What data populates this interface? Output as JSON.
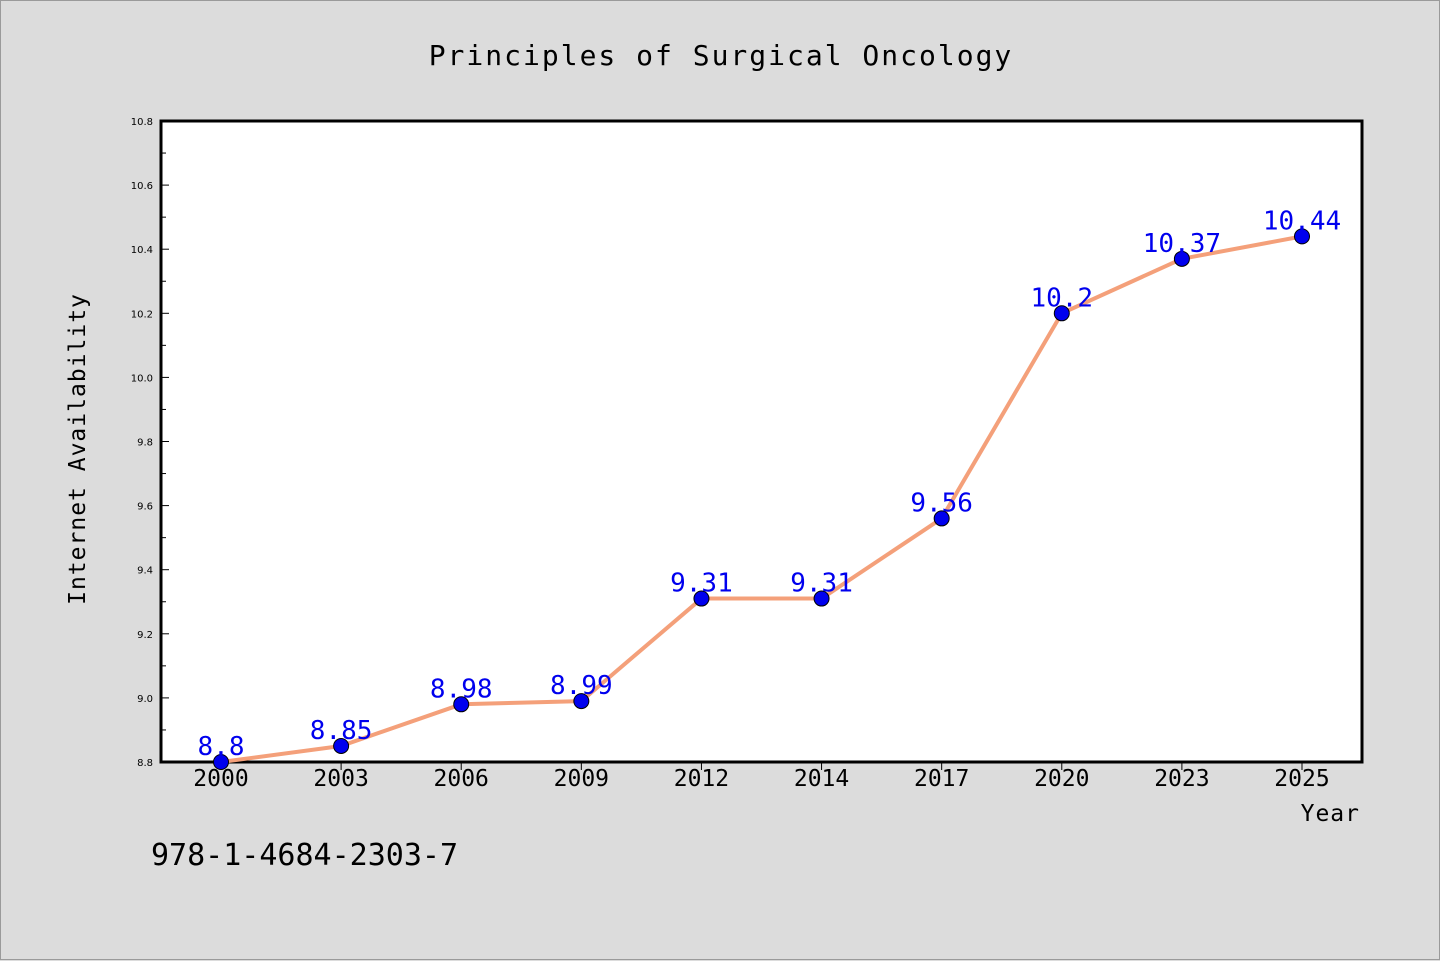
{
  "chart_data": {
    "type": "line",
    "title": "Principles of Surgical Oncology",
    "xlabel": "Year",
    "ylabel": "Internet Availability",
    "categories": [
      "2000",
      "2003",
      "2006",
      "2009",
      "2012",
      "2014",
      "2017",
      "2020",
      "2023",
      "2025"
    ],
    "series": [
      {
        "values": [
          8.8,
          8.85,
          8.98,
          8.99,
          9.31,
          9.31,
          9.56,
          10.2,
          10.37,
          10.44
        ],
        "data_labels": [
          "8.8",
          "8.85",
          "8.98",
          "8.99",
          "9.31",
          "9.31",
          "9.56",
          "10.2",
          "10.37",
          "10.44"
        ],
        "line_color": "#f4a07a",
        "marker_color": "#0000ee",
        "label_color": "#0000ee"
      }
    ],
    "ylim": [
      8.8,
      10.8
    ],
    "yticks": [
      "8.8",
      "9.0",
      "9.2",
      "9.4",
      "9.6",
      "9.8",
      "10.0",
      "10.2",
      "10.4",
      "10.6",
      "10.8"
    ],
    "grid": false,
    "legend": "none"
  },
  "footer": {
    "isbn": "978-1-4684-2303-7"
  },
  "colors": {
    "background": "#dcdcdc",
    "plot_background": "#ffffff"
  }
}
